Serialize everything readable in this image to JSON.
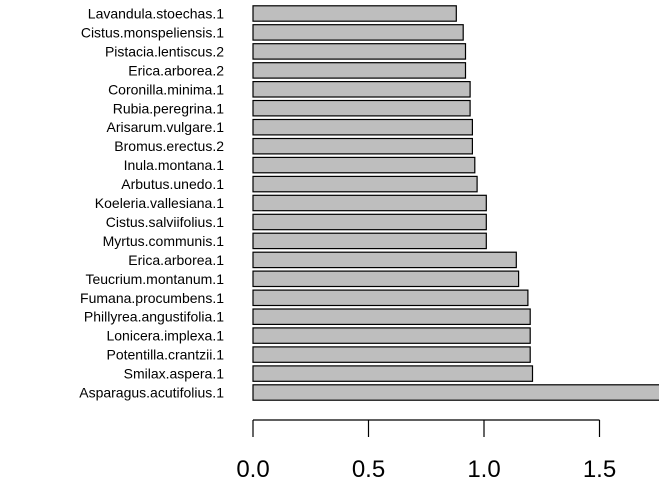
{
  "chart_data": {
    "type": "bar",
    "orientation": "horizontal",
    "title": "",
    "xlabel": "",
    "ylabel": "",
    "categories": [
      "Asparagus.acutifolius.1",
      "Smilax.aspera.1",
      "Potentilla.crantzii.1",
      "Lonicera.implexa.1",
      "Phillyrea.angustifolia.1",
      "Fumana.procumbens.1",
      "Teucrium.montanum.1",
      "Erica.arborea.1",
      "Myrtus.communis.1",
      "Cistus.salviifolius.1",
      "Koeleria.vallesiana.1",
      "Arbutus.unedo.1",
      "Inula.montana.1",
      "Bromus.erectus.2",
      "Arisarum.vulgare.1",
      "Rubia.peregrina.1",
      "Coronilla.minima.1",
      "Erica.arborea.2",
      "Pistacia.lentiscus.2",
      "Cistus.monspeliensis.1",
      "Lavandula.stoechas.1"
    ],
    "values": [
      1.78,
      1.21,
      1.2,
      1.2,
      1.2,
      1.19,
      1.15,
      1.14,
      1.01,
      1.01,
      1.01,
      0.97,
      0.96,
      0.95,
      0.95,
      0.94,
      0.94,
      0.92,
      0.92,
      0.91,
      0.88
    ],
    "xlim": [
      0,
      1.75
    ],
    "ticks": [
      "0.0",
      "0.5",
      "1.0",
      "1.5"
    ],
    "tick_values": [
      0,
      0.5,
      1.0,
      1.5
    ],
    "bar_color": "#bebebe",
    "border_color": "#000000",
    "grid": false,
    "legend": "none"
  }
}
